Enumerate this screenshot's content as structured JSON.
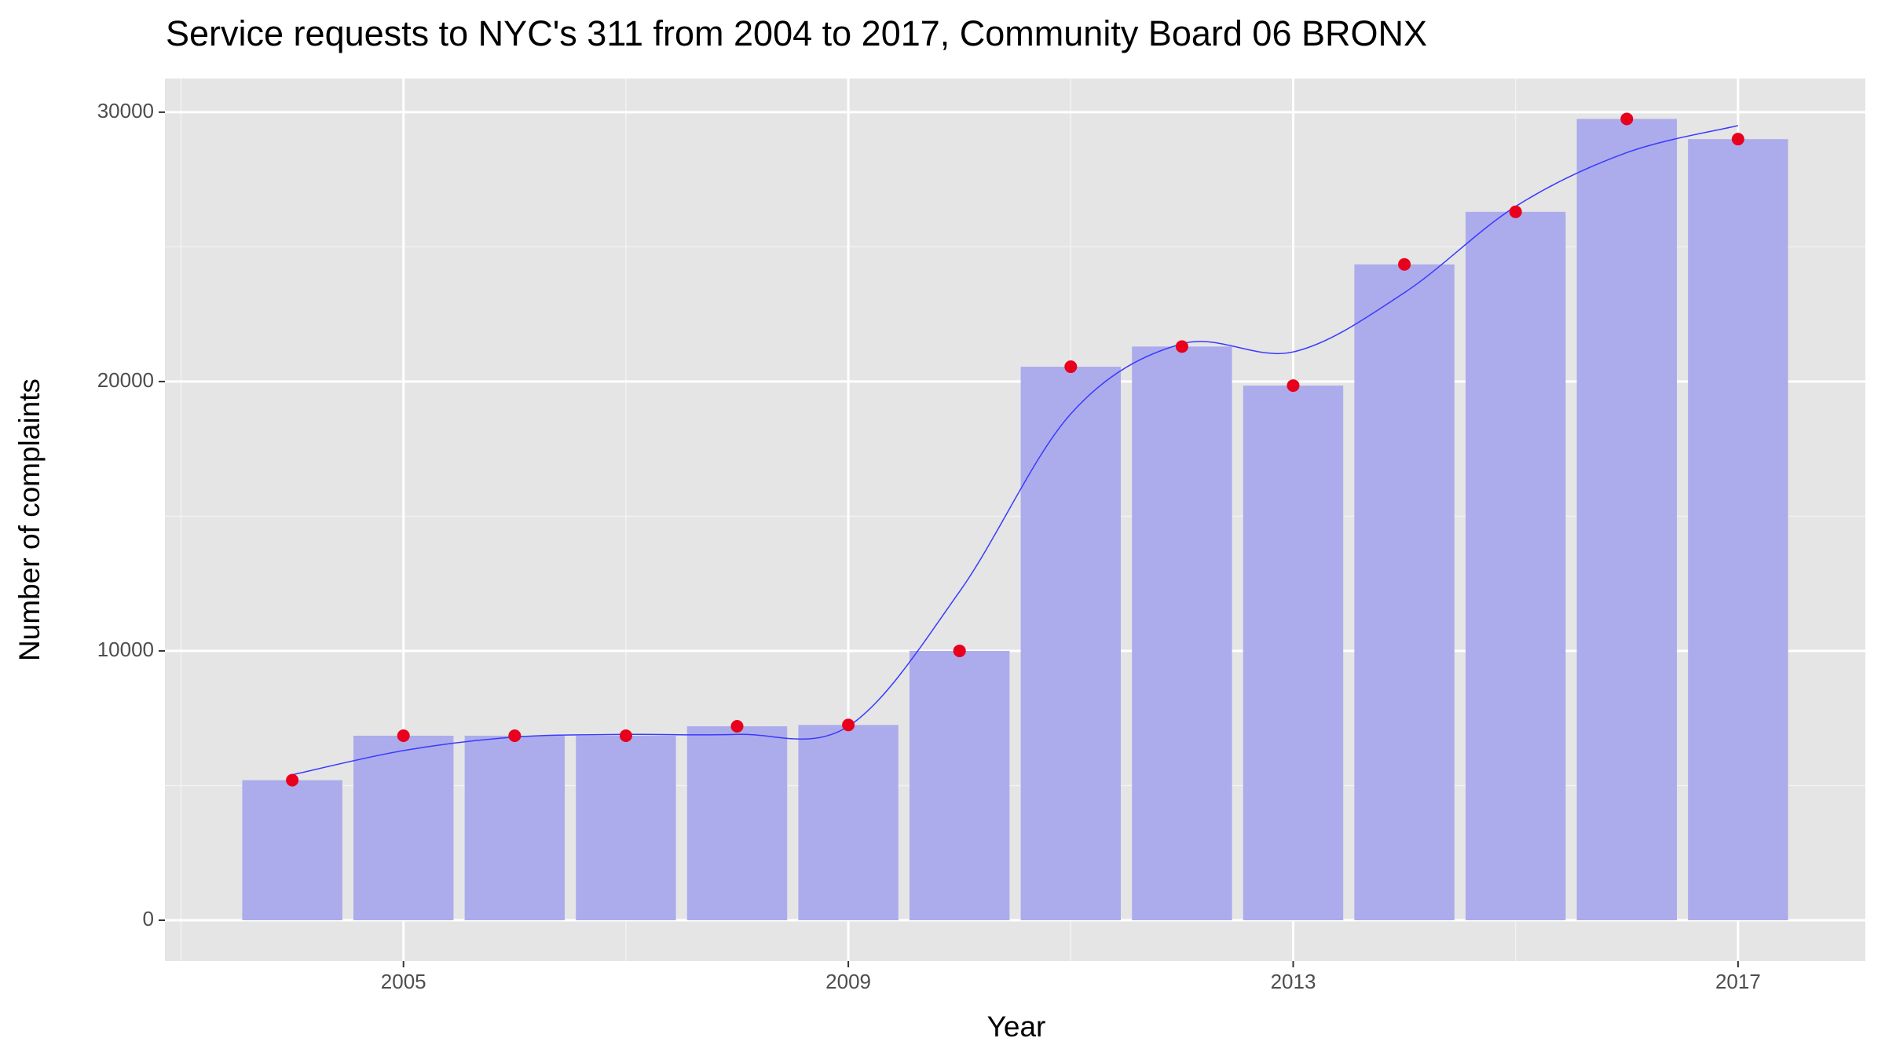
{
  "chart_data": {
    "type": "bar",
    "title": "Service requests to NYC's 311 from 2004 to 2017, Community Board 06 BRONX",
    "x_label": "Year",
    "y_label": "Number of complaints",
    "x": [
      2004,
      2005,
      2006,
      2007,
      2008,
      2009,
      2010,
      2011,
      2012,
      2013,
      2014,
      2015,
      2016,
      2017
    ],
    "values": [
      5200,
      6850,
      6850,
      6850,
      7200,
      7250,
      10000,
      20550,
      21300,
      19850,
      24350,
      26300,
      29750,
      29000
    ],
    "bar_color": "#acacec",
    "point_color": "#e8001c",
    "smooth": {
      "color": "#3a3aff",
      "values": [
        5400,
        6300,
        6800,
        6900,
        6900,
        7200,
        12200,
        18800,
        21400,
        21100,
        23300,
        26500,
        28500,
        29500
      ]
    },
    "xlim": [
      2002.855,
      2018.145
    ],
    "ylim": [
      -1516,
      31250
    ],
    "xticks": [
      2005,
      2009,
      2013,
      2017
    ],
    "yticks": [
      0,
      10000,
      20000,
      30000
    ],
    "x_minor_grid": [
      2003,
      2007,
      2011,
      2015
    ],
    "y_minor_grid": [
      5000,
      15000,
      25000
    ],
    "panel_color": "#e5e5e5",
    "grid": true
  }
}
